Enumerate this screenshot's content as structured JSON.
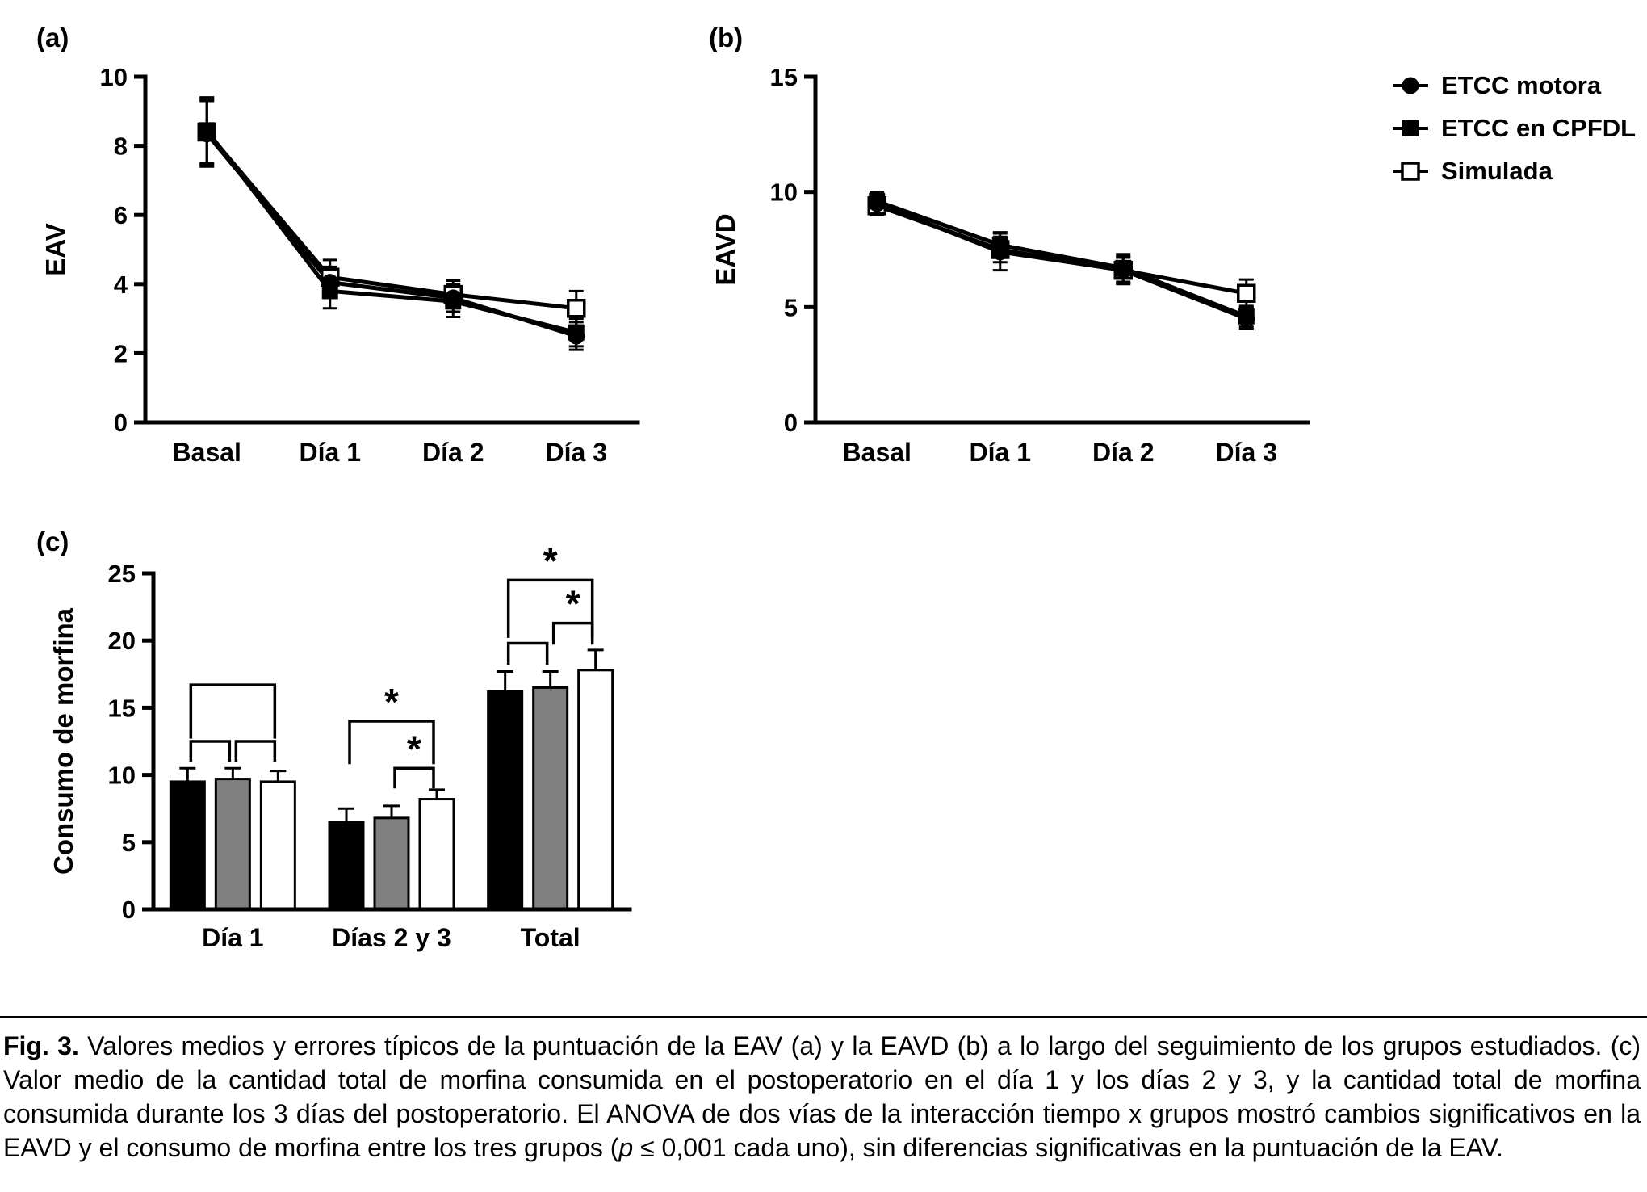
{
  "figure": {
    "panel_a_label": "(a)",
    "panel_b_label": "(b)",
    "panel_c_label": "(c)"
  },
  "colors": {
    "black": "#000000",
    "gray": "#808080",
    "white": "#ffffff"
  },
  "legend": {
    "items": [
      {
        "label": "ETCC motora",
        "marker": "filled-circle"
      },
      {
        "label": "ETCC en CPFDL",
        "marker": "filled-square"
      },
      {
        "label": "Simulada",
        "marker": "open-square"
      }
    ]
  },
  "chart_data": [
    {
      "id": "panel_a",
      "type": "line",
      "title": "",
      "ylabel": "EAV",
      "xlabel": "",
      "categories": [
        "Basal",
        "Día 1",
        "Día 2",
        "Día 3"
      ],
      "ylim": [
        0,
        10
      ],
      "yticks": [
        0,
        2,
        4,
        6,
        8,
        10
      ],
      "grid": false,
      "series": [
        {
          "name": "ETCC motora",
          "marker": "filled-circle",
          "values": [
            8.35,
            4.05,
            3.6,
            2.5
          ],
          "errors": [
            0.95,
            0.45,
            0.4,
            0.4
          ]
        },
        {
          "name": "ETCC en CPFDL",
          "marker": "filled-square",
          "values": [
            8.45,
            3.8,
            3.5,
            2.6
          ],
          "errors": [
            0.95,
            0.5,
            0.45,
            0.4
          ]
        },
        {
          "name": "Simulada",
          "marker": "open-square",
          "values": [
            8.4,
            4.2,
            3.7,
            3.3
          ],
          "errors": [
            0.95,
            0.5,
            0.4,
            0.5
          ]
        }
      ]
    },
    {
      "id": "panel_b",
      "type": "line",
      "title": "",
      "ylabel": "EAVD",
      "xlabel": "",
      "categories": [
        "Basal",
        "Día 1",
        "Día 2",
        "Día 3"
      ],
      "ylim": [
        0,
        15
      ],
      "yticks": [
        0,
        5,
        10,
        15
      ],
      "grid": false,
      "series": [
        {
          "name": "ETCC motora",
          "marker": "filled-circle",
          "values": [
            9.5,
            7.4,
            6.6,
            4.5
          ],
          "errors": [
            0.4,
            0.8,
            0.6,
            0.45
          ]
        },
        {
          "name": "ETCC en CPFDL",
          "marker": "filled-square",
          "values": [
            9.6,
            7.7,
            6.7,
            4.6
          ],
          "errors": [
            0.4,
            0.55,
            0.6,
            0.45
          ]
        },
        {
          "name": "Simulada",
          "marker": "open-square",
          "values": [
            9.4,
            7.5,
            6.6,
            5.6
          ],
          "errors": [
            0.4,
            0.55,
            0.55,
            0.6
          ]
        }
      ]
    },
    {
      "id": "panel_c",
      "type": "bar",
      "title": "",
      "ylabel": "Consumo de morfina",
      "xlabel": "",
      "categories": [
        "Día 1",
        "Días 2 y 3",
        "Total"
      ],
      "ylim": [
        0,
        25
      ],
      "yticks": [
        0,
        5,
        10,
        15,
        20,
        25
      ],
      "grid": false,
      "series": [
        {
          "name": "ETCC motora",
          "fill": "#000000",
          "values": [
            9.5,
            6.5,
            16.2
          ],
          "errors": [
            1.0,
            1.0,
            1.5
          ]
        },
        {
          "name": "ETCC en CPFDL",
          "fill": "#808080",
          "values": [
            9.7,
            6.8,
            16.5
          ],
          "errors": [
            0.8,
            0.9,
            1.2
          ]
        },
        {
          "name": "Simulada",
          "fill": "#ffffff",
          "values": [
            9.5,
            8.2,
            17.8
          ],
          "errors": [
            0.8,
            0.7,
            1.5
          ]
        }
      ],
      "brackets": [
        {
          "group": 0,
          "from": 0,
          "to": 2,
          "y": 16.7,
          "drop": 4.0,
          "label": ""
        },
        {
          "group": 0,
          "from": 0,
          "to": 1,
          "y": 12.5,
          "drop": 1.5,
          "label": ""
        },
        {
          "group": 0,
          "from": 1,
          "to": 2,
          "y": 12.5,
          "drop": 1.5,
          "label": ""
        },
        {
          "group": 1,
          "from": 0,
          "to": 2,
          "y": 14.0,
          "drop": 3.2,
          "label": "*"
        },
        {
          "group": 1,
          "from": 1,
          "to": 2,
          "y": 10.5,
          "drop": 1.5,
          "label": "*"
        },
        {
          "group": 2,
          "from": 0,
          "to": 2,
          "y": 24.5,
          "drop": 4.3,
          "label": "*"
        },
        {
          "group": 2,
          "from": 0,
          "to": 1,
          "y": 19.8,
          "drop": 1.6,
          "label": ""
        },
        {
          "group": 2,
          "from": 1,
          "to": 2,
          "y": 21.3,
          "drop": 1.6,
          "label": "*"
        }
      ]
    }
  ],
  "caption": {
    "label": "Fig. 3.",
    "body_1": " Valores medios y errores típicos de la puntuación de la EAV (a) y la EAVD (b) a lo largo del seguimiento de los grupos estudiados. (c) Valor medio de la cantidad total de morfina consumida en el postoperatorio en el día 1 y los días 2 y 3, y la cantidad total de morfina consumida durante los 3 días del postoperatorio. El ANOVA de dos vías de la interacción tiempo x grupos mostró cambios significativos en la EAVD y el consumo de morfina entre los tres grupos (",
    "p_symbol": "p",
    "body_2": " ≤ 0,001 cada uno), sin diferencias significativas en la puntuación de la EAV."
  }
}
